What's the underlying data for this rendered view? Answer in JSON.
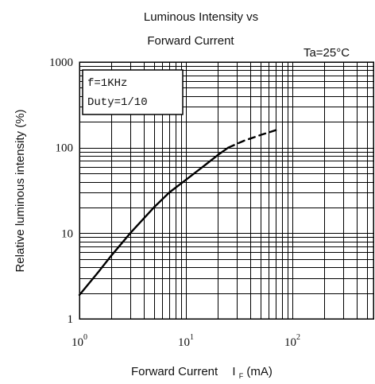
{
  "chart_data": {
    "type": "line",
    "title_line1": "Luminous Intensity vs",
    "title_line2": "Forward Current",
    "annotation": "Ta=25°C",
    "legend_lines": [
      "f=1KHz",
      "Duty=1/10"
    ],
    "xlabel": "Forward Current",
    "xlabel_sub": "F",
    "xlabel_unit": "(mA)",
    "ylabel": "Relative luminous intensity   (%)",
    "x_scale": "log",
    "y_scale": "log",
    "xlim": [
      1,
      500
    ],
    "ylim": [
      1,
      1000
    ],
    "x_ticks": [
      {
        "value": 1,
        "base": "10",
        "exp": "0"
      },
      {
        "value": 10,
        "base": "10",
        "exp": "1"
      },
      {
        "value": 100,
        "base": "10",
        "exp": "2"
      }
    ],
    "y_ticks": [
      {
        "value": 1,
        "label": "1"
      },
      {
        "value": 10,
        "label": "10"
      },
      {
        "value": 100,
        "label": "100"
      },
      {
        "value": 1000,
        "label": "1000"
      }
    ],
    "grid": true,
    "series": [
      {
        "style": "solid",
        "x": [
          1,
          1.5,
          2,
          3,
          5,
          7,
          10,
          15,
          20,
          25
        ],
        "y": [
          1.9,
          3.5,
          5.5,
          10,
          20,
          30,
          42,
          62,
          82,
          100
        ]
      },
      {
        "style": "dashed",
        "x": [
          25,
          35,
          50,
          70
        ],
        "y": [
          100,
          120,
          140,
          160
        ]
      }
    ]
  }
}
